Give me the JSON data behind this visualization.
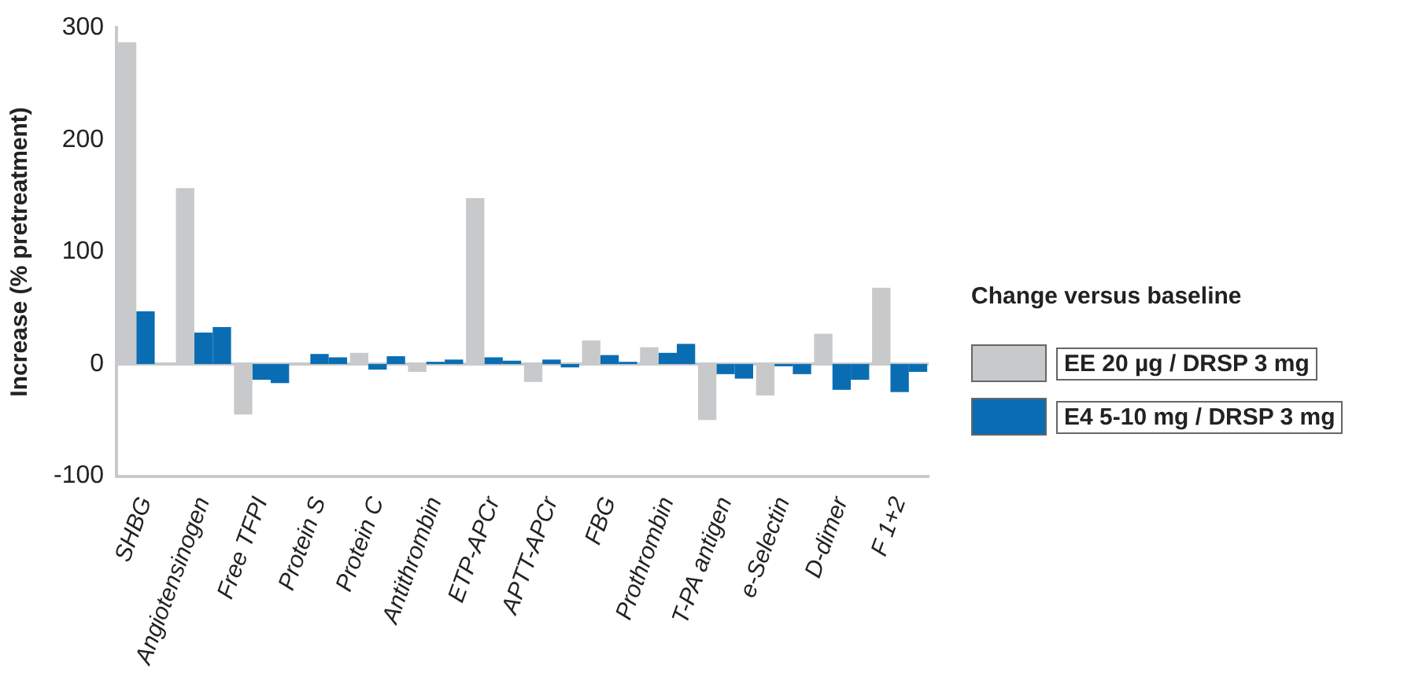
{
  "chart_data": {
    "type": "bar",
    "ylabel": "Increase (% pretreatment)",
    "legend_title": "Change versus baseline",
    "legend": "right",
    "categories": [
      "SHBG",
      "Angiotensinogen",
      "Free TFPI",
      "Protein S",
      "Protein C",
      "Antithrombin",
      "ETP-APCr",
      "APTT-APCr",
      "FBG",
      "Prothrombin",
      "T-PA antigen",
      "e-Selectin",
      "D-dimer",
      "F 1+2"
    ],
    "series": [
      {
        "name": "EE 20 µg / DRSP 3 mg",
        "color": "#c8c9cb",
        "values": [
          287,
          157,
          -45,
          0,
          10,
          -7,
          148,
          -16,
          21,
          15,
          -50,
          -28,
          27,
          68
        ]
      },
      {
        "name": "E4 5-10 mg / DRSP 3 mg",
        "color": "#0a6db3",
        "values": [
          47,
          28,
          -14,
          9,
          -5,
          2,
          6,
          4,
          8,
          10,
          -9,
          -2,
          -23,
          -25
        ]
      },
      {
        "color": "#0a6db3",
        "values": [
          null,
          33,
          -17,
          6,
          7,
          4,
          3,
          -3,
          2,
          18,
          -13,
          -9,
          -14,
          -7
        ]
      }
    ],
    "ylim": [
      -100,
      300
    ],
    "yticks": [
      -100,
      0,
      100,
      200,
      300
    ],
    "grid": false,
    "ref_lines": [
      {
        "axis": "y",
        "value": 0,
        "color": "#c8c9cb"
      }
    ]
  }
}
